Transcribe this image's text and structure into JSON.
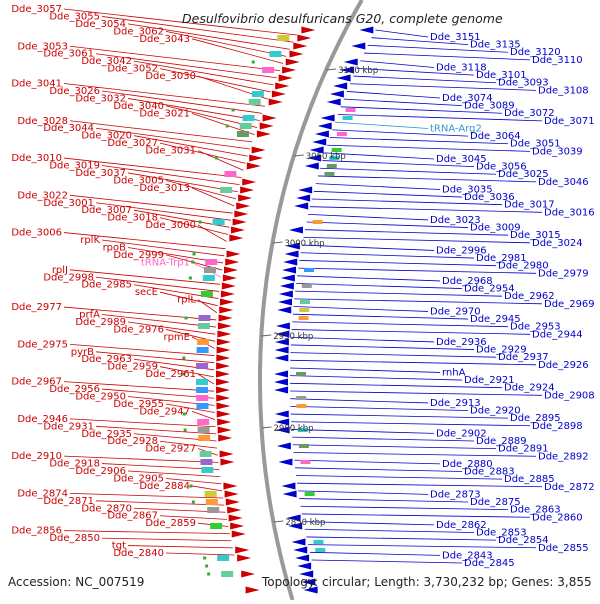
{
  "title": "Desulfovibrio desulfuricans G20, complete genome",
  "footer": {
    "accession": "Accession: NC_007519",
    "stats": "Topology: circular; Length: 3,730,232 bp; Genes: 3,855"
  },
  "colors": {
    "forward": "#cc0000",
    "reverse": "#0000cc",
    "rna_forward": "#ff66cc",
    "rna_reverse": "#3399cc",
    "backbone": "#999999"
  },
  "ticks": [
    "3100 kbp",
    "3050 kbp",
    "3000 kbp",
    "2950 kbp",
    "2900 kbp",
    "2850 kbp"
  ],
  "labels_left": [
    {
      "text": "Dde_3057",
      "type": "gene"
    },
    {
      "text": "Dde_3055",
      "type": "gene"
    },
    {
      "text": "Dde_3054",
      "type": "gene"
    },
    {
      "text": "Dde_3062",
      "type": "gene"
    },
    {
      "text": "Dde_3043",
      "type": "gene"
    },
    {
      "text": "Dde_3053",
      "type": "gene"
    },
    {
      "text": "Dde_3061",
      "type": "gene"
    },
    {
      "text": "Dde_3042",
      "type": "gene"
    },
    {
      "text": "Dde_3052",
      "type": "gene"
    },
    {
      "text": "Dde_3030",
      "type": "gene"
    },
    {
      "text": "Dde_3041",
      "type": "gene"
    },
    {
      "text": "Dde_3026",
      "type": "gene"
    },
    {
      "text": "Dde_3032",
      "type": "gene"
    },
    {
      "text": "Dde_3040",
      "type": "gene"
    },
    {
      "text": "Dde_3021",
      "type": "gene"
    },
    {
      "text": "Dde_3028",
      "type": "gene"
    },
    {
      "text": "Dde_3044",
      "type": "gene"
    },
    {
      "text": "Dde_3020",
      "type": "gene"
    },
    {
      "text": "Dde_3027",
      "type": "gene"
    },
    {
      "text": "Dde_3031",
      "type": "gene"
    },
    {
      "text": "Dde_3010",
      "type": "gene"
    },
    {
      "text": "Dde_3019",
      "type": "gene"
    },
    {
      "text": "Dde_3037",
      "type": "gene"
    },
    {
      "text": "Dde_3005",
      "type": "gene"
    },
    {
      "text": "Dde_3013",
      "type": "gene"
    },
    {
      "text": "Dde_3022",
      "type": "gene"
    },
    {
      "text": "Dde_3001",
      "type": "gene"
    },
    {
      "text": "Dde_3007",
      "type": "gene"
    },
    {
      "text": "Dde_3018",
      "type": "gene"
    },
    {
      "text": "Dde_3000",
      "type": "gene"
    },
    {
      "text": "Dde_3006",
      "type": "gene"
    },
    {
      "text": "rplK",
      "type": "gene"
    },
    {
      "text": "rpoB",
      "type": "gene"
    },
    {
      "text": "Dde_2999",
      "type": "gene"
    },
    {
      "text": "tRNA-Trp1",
      "type": "rna"
    },
    {
      "text": "rplJ",
      "type": "gene"
    },
    {
      "text": "Dde_2998",
      "type": "gene"
    },
    {
      "text": "Dde_2985",
      "type": "gene"
    },
    {
      "text": "secE",
      "type": "gene"
    },
    {
      "text": "rplL",
      "type": "gene"
    },
    {
      "text": "Dde_2977",
      "type": "gene"
    },
    {
      "text": "prfA",
      "type": "gene"
    },
    {
      "text": "Dde_2989",
      "type": "gene"
    },
    {
      "text": "Dde_2976",
      "type": "gene"
    },
    {
      "text": "rpmE",
      "type": "gene"
    },
    {
      "text": "Dde_2975",
      "type": "gene"
    },
    {
      "text": "pyrB",
      "type": "gene"
    },
    {
      "text": "Dde_2963",
      "type": "gene"
    },
    {
      "text": "Dde_2959",
      "type": "gene"
    },
    {
      "text": "Dde_2961",
      "type": "gene"
    },
    {
      "text": "Dde_2967",
      "type": "gene"
    },
    {
      "text": "Dde_2956",
      "type": "gene"
    },
    {
      "text": "Dde_2950",
      "type": "gene"
    },
    {
      "text": "Dde_2955",
      "type": "gene"
    },
    {
      "text": "Dde_2947",
      "type": "gene"
    },
    {
      "text": "Dde_2946",
      "type": "gene"
    },
    {
      "text": "Dde_2931",
      "type": "gene"
    },
    {
      "text": "Dde_2935",
      "type": "gene"
    },
    {
      "text": "Dde_2928",
      "type": "gene"
    },
    {
      "text": "Dde_2927",
      "type": "gene"
    },
    {
      "text": "Dde_2910",
      "type": "gene"
    },
    {
      "text": "Dde_2918",
      "type": "gene"
    },
    {
      "text": "Dde_2906",
      "type": "gene"
    },
    {
      "text": "Dde_2905",
      "type": "gene"
    },
    {
      "text": "Dde_2884",
      "type": "gene"
    },
    {
      "text": "Dde_2874",
      "type": "gene"
    },
    {
      "text": "Dde_2871",
      "type": "gene"
    },
    {
      "text": "Dde_2870",
      "type": "gene"
    },
    {
      "text": "Dde_2867",
      "type": "gene"
    },
    {
      "text": "Dde_2859",
      "type": "gene"
    },
    {
      "text": "Dde_2856",
      "type": "gene"
    },
    {
      "text": "Dde_2850",
      "type": "gene"
    },
    {
      "text": "tgt",
      "type": "gene"
    },
    {
      "text": "Dde_2840",
      "type": "gene"
    }
  ],
  "labels_right": [
    {
      "text": "Dde_3151",
      "type": "gene"
    },
    {
      "text": "Dde_3135",
      "type": "gene"
    },
    {
      "text": "Dde_3120",
      "type": "gene"
    },
    {
      "text": "Dde_3110",
      "type": "gene"
    },
    {
      "text": "Dde_3118",
      "type": "gene"
    },
    {
      "text": "Dde_3101",
      "type": "gene"
    },
    {
      "text": "Dde_3093",
      "type": "gene"
    },
    {
      "text": "Dde_3108",
      "type": "gene"
    },
    {
      "text": "Dde_3074",
      "type": "gene"
    },
    {
      "text": "Dde_3089",
      "type": "gene"
    },
    {
      "text": "Dde_3072",
      "type": "gene"
    },
    {
      "text": "Dde_3071",
      "type": "gene"
    },
    {
      "text": "tRNA-Arg2",
      "type": "rna"
    },
    {
      "text": "Dde_3064",
      "type": "gene"
    },
    {
      "text": "Dde_3051",
      "type": "gene"
    },
    {
      "text": "Dde_3039",
      "type": "gene"
    },
    {
      "text": "Dde_3045",
      "type": "gene"
    },
    {
      "text": "Dde_3056",
      "type": "gene"
    },
    {
      "text": "Dde_3025",
      "type": "gene"
    },
    {
      "text": "Dde_3046",
      "type": "gene"
    },
    {
      "text": "Dde_3035",
      "type": "gene"
    },
    {
      "text": "Dde_3036",
      "type": "gene"
    },
    {
      "text": "Dde_3017",
      "type": "gene"
    },
    {
      "text": "Dde_3016",
      "type": "gene"
    },
    {
      "text": "Dde_3023",
      "type": "gene"
    },
    {
      "text": "Dde_3009",
      "type": "gene"
    },
    {
      "text": "Dde_3015",
      "type": "gene"
    },
    {
      "text": "Dde_3024",
      "type": "gene"
    },
    {
      "text": "Dde_2996",
      "type": "gene"
    },
    {
      "text": "Dde_2981",
      "type": "gene"
    },
    {
      "text": "Dde_2980",
      "type": "gene"
    },
    {
      "text": "Dde_2979",
      "type": "gene"
    },
    {
      "text": "Dde_2968",
      "type": "gene"
    },
    {
      "text": "Dde_2954",
      "type": "gene"
    },
    {
      "text": "Dde_2962",
      "type": "gene"
    },
    {
      "text": "Dde_2969",
      "type": "gene"
    },
    {
      "text": "Dde_2970",
      "type": "gene"
    },
    {
      "text": "Dde_2945",
      "type": "gene"
    },
    {
      "text": "Dde_2953",
      "type": "gene"
    },
    {
      "text": "Dde_2944",
      "type": "gene"
    },
    {
      "text": "Dde_2936",
      "type": "gene"
    },
    {
      "text": "Dde_2929",
      "type": "gene"
    },
    {
      "text": "Dde_2937",
      "type": "gene"
    },
    {
      "text": "Dde_2926",
      "type": "gene"
    },
    {
      "text": "rnhA",
      "type": "gene"
    },
    {
      "text": "Dde_2921",
      "type": "gene"
    },
    {
      "text": "Dde_2924",
      "type": "gene"
    },
    {
      "text": "Dde_2908",
      "type": "gene"
    },
    {
      "text": "Dde_2913",
      "type": "gene"
    },
    {
      "text": "Dde_2920",
      "type": "gene"
    },
    {
      "text": "Dde_2895",
      "type": "gene"
    },
    {
      "text": "Dde_2898",
      "type": "gene"
    },
    {
      "text": "Dde_2902",
      "type": "gene"
    },
    {
      "text": "Dde_2889",
      "type": "gene"
    },
    {
      "text": "Dde_2891",
      "type": "gene"
    },
    {
      "text": "Dde_2892",
      "type": "gene"
    },
    {
      "text": "Dde_2880",
      "type": "gene"
    },
    {
      "text": "Dde_2883",
      "type": "gene"
    },
    {
      "text": "Dde_2885",
      "type": "gene"
    },
    {
      "text": "Dde_2872",
      "type": "gene"
    },
    {
      "text": "Dde_2873",
      "type": "gene"
    },
    {
      "text": "Dde_2875",
      "type": "gene"
    },
    {
      "text": "Dde_2863",
      "type": "gene"
    },
    {
      "text": "Dde_2860",
      "type": "gene"
    },
    {
      "text": "Dde_2862",
      "type": "gene"
    },
    {
      "text": "Dde_2853",
      "type": "gene"
    },
    {
      "text": "Dde_2854",
      "type": "gene"
    },
    {
      "text": "Dde_2855",
      "type": "gene"
    },
    {
      "text": "Dde_2843",
      "type": "gene"
    },
    {
      "text": "Dde_2845",
      "type": "gene"
    }
  ]
}
